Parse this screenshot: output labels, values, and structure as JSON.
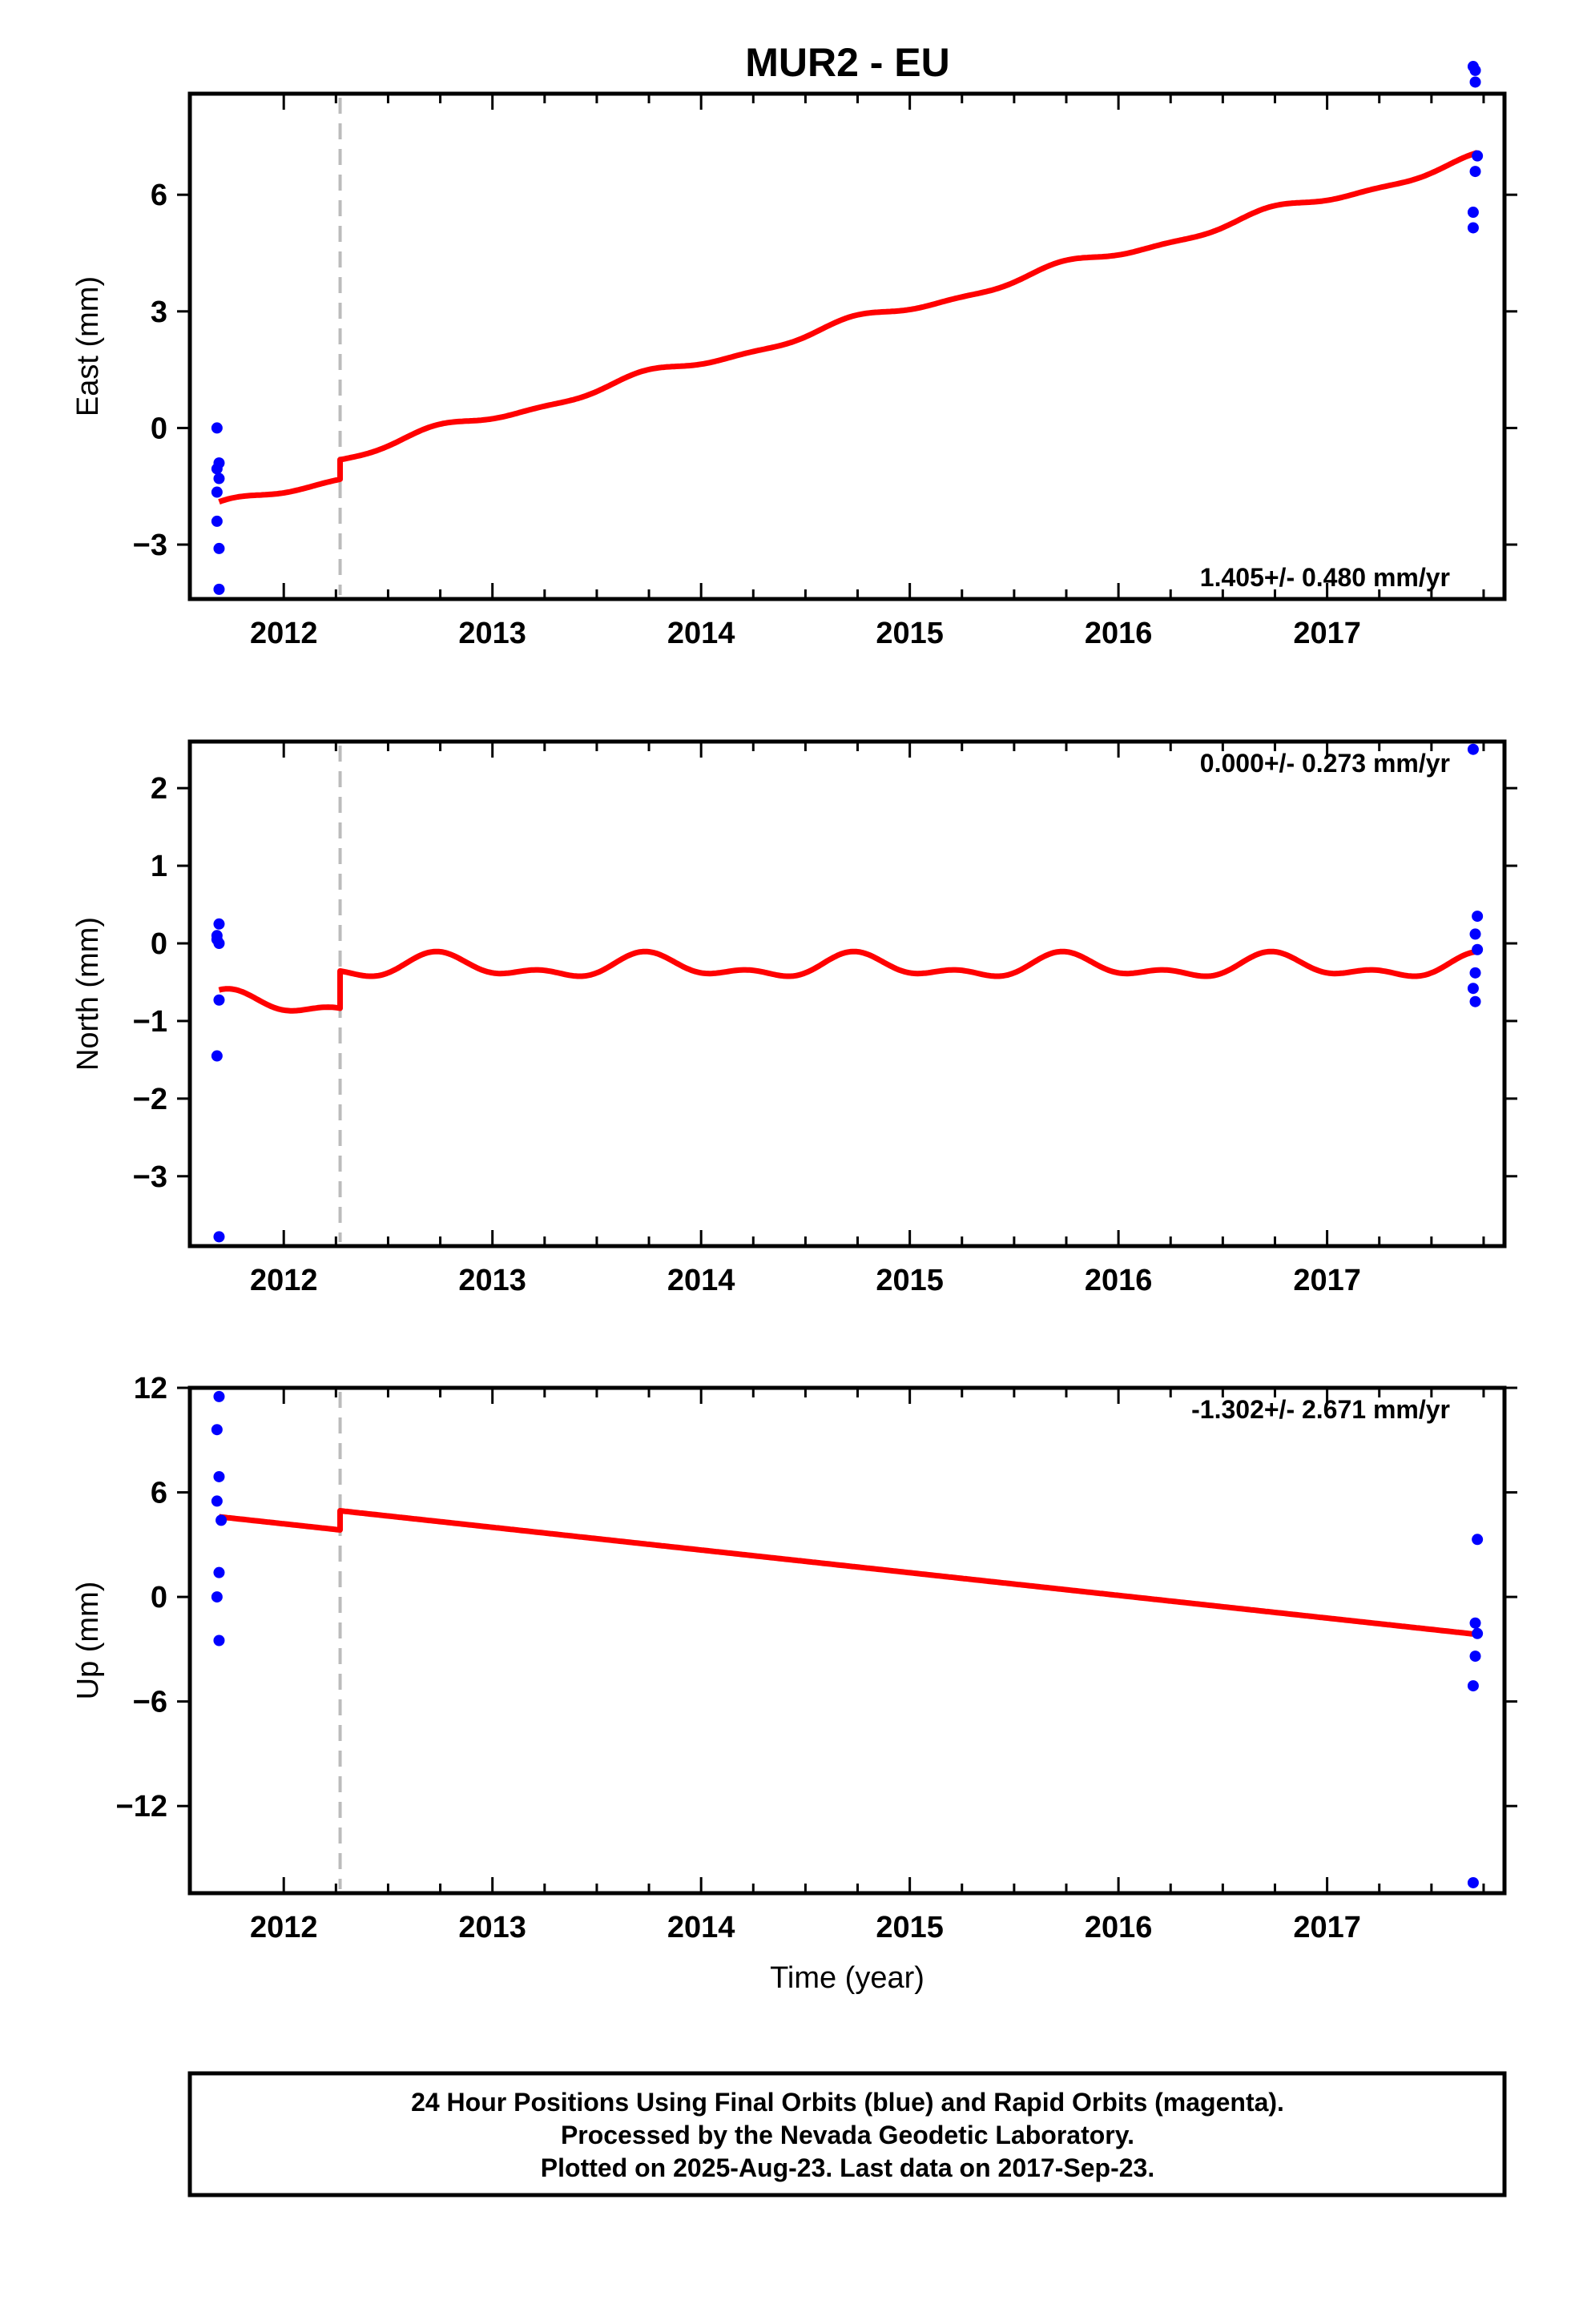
{
  "title": "MUR2 - EU",
  "colors": {
    "model": "#ff0000",
    "final_orbits": "#0000ff",
    "break_line": "#bbbbbb",
    "axes": "#000000"
  },
  "chart_data": [
    {
      "type": "scatter",
      "panel": "east",
      "ylabel": "East (mm)",
      "xlim": [
        2011.55,
        2017.85
      ],
      "ylim": [
        -4.4,
        8.6
      ],
      "yticks": [
        -3,
        0,
        3,
        6
      ],
      "ytick_labels": [
        "−3",
        "0",
        "3",
        "6"
      ],
      "xticks": [
        2012,
        2013,
        2014,
        2015,
        2016,
        2017
      ],
      "xtick_labels": [
        "2012",
        "2013",
        "2014",
        "2015",
        "2016",
        "2017"
      ],
      "rate_label": "1.405+/- 0.480 mm/yr",
      "rate_label_position": "bottom-right",
      "break_epoch": 2012.27,
      "model": {
        "rate": 1.405,
        "offset_at_break": 0.5,
        "value_at_start": -1.9,
        "annual_amp": 0.12,
        "semiannual_amp": 0.05
      },
      "points": [
        {
          "x": 2011.68,
          "y": 0.0
        },
        {
          "x": 2011.69,
          "y": -0.9
        },
        {
          "x": 2011.68,
          "y": -1.05
        },
        {
          "x": 2011.69,
          "y": -1.3
        },
        {
          "x": 2011.68,
          "y": -1.65
        },
        {
          "x": 2011.68,
          "y": -2.4
        },
        {
          "x": 2011.69,
          "y": -3.1
        },
        {
          "x": 2011.69,
          "y": -4.15
        },
        {
          "x": 2017.7,
          "y": 9.3
        },
        {
          "x": 2017.71,
          "y": 9.2
        },
        {
          "x": 2017.71,
          "y": 8.9
        },
        {
          "x": 2017.72,
          "y": 7.0
        },
        {
          "x": 2017.71,
          "y": 6.6
        },
        {
          "x": 2017.7,
          "y": 5.55
        },
        {
          "x": 2017.7,
          "y": 5.15
        }
      ]
    },
    {
      "type": "scatter",
      "panel": "north",
      "ylabel": "North (mm)",
      "xlim": [
        2011.55,
        2017.85
      ],
      "ylim": [
        -3.9,
        2.6
      ],
      "yticks": [
        -3,
        -2,
        -1,
        0,
        1,
        2
      ],
      "ytick_labels": [
        "−3",
        "−2",
        "−1",
        "0",
        "1",
        "2"
      ],
      "xticks": [
        2012,
        2013,
        2014,
        2015,
        2016,
        2017
      ],
      "xtick_labels": [
        "2012",
        "2013",
        "2014",
        "2015",
        "2016",
        "2017"
      ],
      "rate_label": "0.000+/- 0.273 mm/yr",
      "rate_label_position": "top-right",
      "break_epoch": 2012.27,
      "model": {
        "rate": 0.0,
        "offset_at_break": 0.48,
        "value_at_start": -0.6,
        "annual_amp": 0.12,
        "semiannual_amp": 0.08
      },
      "points": [
        {
          "x": 2011.68,
          "y": 0.1
        },
        {
          "x": 2011.69,
          "y": 0.25
        },
        {
          "x": 2011.68,
          "y": 0.05
        },
        {
          "x": 2011.69,
          "y": 0.0
        },
        {
          "x": 2011.69,
          "y": -0.73
        },
        {
          "x": 2011.68,
          "y": -1.45
        },
        {
          "x": 2011.69,
          "y": -3.78
        },
        {
          "x": 2017.7,
          "y": 2.5
        },
        {
          "x": 2017.72,
          "y": 0.35
        },
        {
          "x": 2017.71,
          "y": 0.12
        },
        {
          "x": 2017.72,
          "y": -0.08
        },
        {
          "x": 2017.71,
          "y": -0.38
        },
        {
          "x": 2017.7,
          "y": -0.58
        },
        {
          "x": 2017.71,
          "y": -0.75
        }
      ]
    },
    {
      "type": "scatter",
      "panel": "up",
      "ylabel": "Up (mm)",
      "xlabel": "Time (year)",
      "xlim": [
        2011.55,
        2017.85
      ],
      "ylim": [
        -17.0,
        12.0
      ],
      "yticks": [
        -12,
        -6,
        0,
        6,
        12
      ],
      "ytick_labels": [
        "−12",
        "−6",
        "0",
        "6",
        "12"
      ],
      "xticks": [
        2012,
        2013,
        2014,
        2015,
        2016,
        2017
      ],
      "xtick_labels": [
        "2012",
        "2013",
        "2014",
        "2015",
        "2016",
        "2017"
      ],
      "rate_label": "-1.302+/- 2.671 mm/yr",
      "rate_label_position": "top-right",
      "break_epoch": 2012.27,
      "model": {
        "rate": -1.302,
        "offset_at_break": 1.1,
        "value_at_start": 4.6,
        "annual_amp": 0.0,
        "semiannual_amp": 0.0
      },
      "points": [
        {
          "x": 2011.69,
          "y": 11.5
        },
        {
          "x": 2011.68,
          "y": 9.6
        },
        {
          "x": 2011.69,
          "y": 6.9
        },
        {
          "x": 2011.68,
          "y": 5.5
        },
        {
          "x": 2011.7,
          "y": 4.4
        },
        {
          "x": 2011.69,
          "y": 1.4
        },
        {
          "x": 2011.68,
          "y": 0.0
        },
        {
          "x": 2011.69,
          "y": -2.5
        },
        {
          "x": 2017.72,
          "y": 3.3
        },
        {
          "x": 2017.71,
          "y": -1.5
        },
        {
          "x": 2017.72,
          "y": -2.1
        },
        {
          "x": 2017.71,
          "y": -3.4
        },
        {
          "x": 2017.7,
          "y": -5.1
        },
        {
          "x": 2017.7,
          "y": -16.4
        }
      ]
    }
  ],
  "footer": {
    "line1": "24 Hour Positions Using Final Orbits (blue) and Rapid Orbits (magenta).",
    "line2": "Processed by the Nevada Geodetic Laboratory.",
    "line3": "Plotted on 2025-Aug-23. Last data on 2017-Sep-23."
  }
}
